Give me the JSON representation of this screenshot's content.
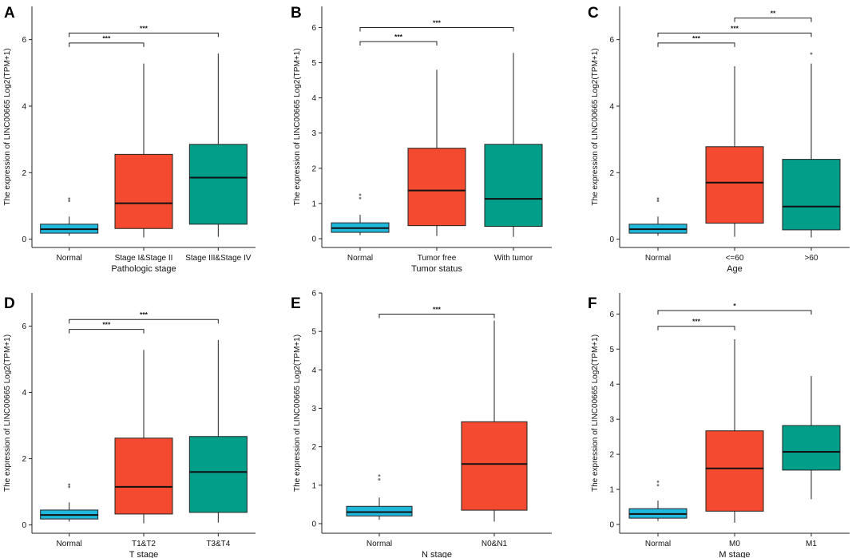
{
  "colors": {
    "cyan": "#1fb8dc",
    "red": "#f44a30",
    "green": "#019e89",
    "outlier": "#777777"
  },
  "chart_data": [
    {
      "panel": "A",
      "type": "box",
      "xlabel": "Pathologic stage",
      "ylabel": "The expression of LINC00665 Log2(TPM+1)",
      "ylim": [
        -0.25,
        7.0
      ],
      "yticks": [
        0,
        2,
        4,
        6
      ],
      "categories": [
        "Normal",
        "Stage I&Stage II",
        "Stage III&Stage IV"
      ],
      "boxes": [
        {
          "min": 0.1,
          "q1": 0.18,
          "median": 0.3,
          "q3": 0.45,
          "max": 0.68,
          "outliers": [
            1.15,
            1.22
          ],
          "color": "cyan"
        },
        {
          "min": 0.05,
          "q1": 0.32,
          "median": 1.08,
          "q3": 2.55,
          "max": 5.28,
          "outliers": [],
          "color": "red"
        },
        {
          "min": 0.07,
          "q1": 0.45,
          "median": 1.85,
          "q3": 2.85,
          "max": 5.58,
          "outliers": [],
          "color": "green"
        }
      ],
      "brackets": [
        {
          "from": 0,
          "to": 1,
          "y": 5.9,
          "label": "***"
        },
        {
          "from": 0,
          "to": 2,
          "y": 6.2,
          "label": "***"
        }
      ]
    },
    {
      "panel": "B",
      "type": "box",
      "xlabel": "Tumor status",
      "ylabel": "The expression of LINC00665 Log2(TPM+1)",
      "ylim": [
        -0.25,
        6.6
      ],
      "yticks": [
        0,
        1,
        2,
        3,
        4,
        5,
        6
      ],
      "categories": [
        "Normal",
        "Tumor free",
        "With tumor"
      ],
      "boxes": [
        {
          "min": 0.1,
          "q1": 0.18,
          "median": 0.3,
          "q3": 0.45,
          "max": 0.68,
          "outliers": [
            1.15,
            1.25
          ],
          "color": "cyan"
        },
        {
          "min": 0.08,
          "q1": 0.37,
          "median": 1.37,
          "q3": 2.57,
          "max": 4.8,
          "outliers": [],
          "color": "red"
        },
        {
          "min": 0.05,
          "q1": 0.35,
          "median": 1.13,
          "q3": 2.68,
          "max": 5.28,
          "outliers": [],
          "color": "green"
        }
      ],
      "brackets": [
        {
          "from": 0,
          "to": 1,
          "y": 5.6,
          "label": "***"
        },
        {
          "from": 0,
          "to": 2,
          "y": 6.0,
          "label": "***"
        }
      ]
    },
    {
      "panel": "C",
      "type": "box",
      "xlabel": "Age",
      "ylabel": "The expression of LINC00665 Log2(TPM+1)",
      "ylim": [
        -0.25,
        7.0
      ],
      "yticks": [
        0,
        2,
        4,
        6
      ],
      "categories": [
        "Normal",
        "<=60",
        ">60"
      ],
      "boxes": [
        {
          "min": 0.1,
          "q1": 0.18,
          "median": 0.3,
          "q3": 0.45,
          "max": 0.68,
          "outliers": [
            1.15,
            1.22
          ],
          "color": "cyan"
        },
        {
          "min": 0.07,
          "q1": 0.48,
          "median": 1.7,
          "q3": 2.78,
          "max": 5.2,
          "outliers": [],
          "color": "red"
        },
        {
          "min": 0.05,
          "q1": 0.28,
          "median": 0.98,
          "q3": 2.4,
          "max": 5.28,
          "outliers": [
            5.58
          ],
          "color": "green"
        }
      ],
      "brackets": [
        {
          "from": 0,
          "to": 1,
          "y": 5.9,
          "label": "***"
        },
        {
          "from": 0,
          "to": 2,
          "y": 6.2,
          "label": "***"
        },
        {
          "from": 1,
          "to": 2,
          "y": 6.65,
          "label": "**"
        }
      ]
    },
    {
      "panel": "D",
      "type": "box",
      "xlabel": "T stage",
      "ylabel": "The expression of LINC00665 Log2(TPM+1)",
      "ylim": [
        -0.25,
        7.0
      ],
      "yticks": [
        0,
        2,
        4,
        6
      ],
      "categories": [
        "Normal",
        "T1&T2",
        "T3&T4"
      ],
      "boxes": [
        {
          "min": 0.1,
          "q1": 0.18,
          "median": 0.3,
          "q3": 0.45,
          "max": 0.68,
          "outliers": [
            1.15,
            1.22
          ],
          "color": "cyan"
        },
        {
          "min": 0.05,
          "q1": 0.33,
          "median": 1.15,
          "q3": 2.62,
          "max": 5.28,
          "outliers": [],
          "color": "red"
        },
        {
          "min": 0.07,
          "q1": 0.38,
          "median": 1.6,
          "q3": 2.67,
          "max": 5.58,
          "outliers": [],
          "color": "green"
        }
      ],
      "brackets": [
        {
          "from": 0,
          "to": 1,
          "y": 5.9,
          "label": "***"
        },
        {
          "from": 0,
          "to": 2,
          "y": 6.2,
          "label": "***"
        }
      ]
    },
    {
      "panel": "E",
      "type": "box",
      "xlabel": "N stage",
      "ylabel": "The expression of LINC00665 Log2(TPM+1)",
      "ylim": [
        -0.25,
        6.0
      ],
      "yticks": [
        0,
        1,
        2,
        3,
        4,
        5,
        6
      ],
      "categories": [
        "Normal",
        "N0&N1"
      ],
      "boxes": [
        {
          "min": 0.1,
          "q1": 0.2,
          "median": 0.3,
          "q3": 0.45,
          "max": 0.68,
          "outliers": [
            1.15,
            1.25
          ],
          "color": "cyan"
        },
        {
          "min": 0.05,
          "q1": 0.35,
          "median": 1.55,
          "q3": 2.65,
          "max": 5.28,
          "outliers": [],
          "color": "red"
        }
      ],
      "brackets": [
        {
          "from": 0,
          "to": 1,
          "y": 5.45,
          "label": "***"
        }
      ]
    },
    {
      "panel": "F",
      "type": "box",
      "xlabel": "M stage",
      "ylabel": "The expression of LINC00665 Log2(TPM+1)",
      "ylim": [
        -0.25,
        6.6
      ],
      "yticks": [
        0,
        1,
        2,
        3,
        4,
        5,
        6
      ],
      "categories": [
        "Normal",
        "M0",
        "M1"
      ],
      "boxes": [
        {
          "min": 0.1,
          "q1": 0.18,
          "median": 0.3,
          "q3": 0.45,
          "max": 0.68,
          "outliers": [
            1.12,
            1.22
          ],
          "color": "cyan"
        },
        {
          "min": 0.05,
          "q1": 0.38,
          "median": 1.6,
          "q3": 2.67,
          "max": 5.28,
          "outliers": [],
          "color": "red"
        },
        {
          "min": 0.72,
          "q1": 1.55,
          "median": 2.07,
          "q3": 2.82,
          "max": 4.23,
          "outliers": [],
          "color": "green"
        }
      ],
      "brackets": [
        {
          "from": 0,
          "to": 1,
          "y": 5.65,
          "label": "***"
        },
        {
          "from": 0,
          "to": 2,
          "y": 6.1,
          "label": "*"
        }
      ]
    }
  ]
}
